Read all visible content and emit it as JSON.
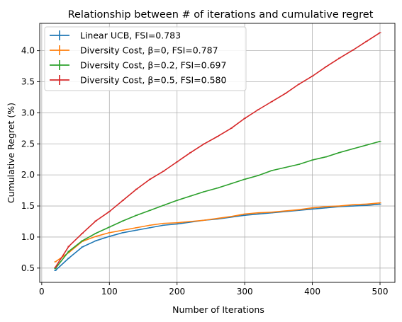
{
  "chart_data": {
    "type": "line",
    "title": "Relationship between # of iterations and cumulative regret",
    "xlabel": "Number of Iterations",
    "ylabel": "Cumulative Regret (%)",
    "xlim": [
      -3,
      522
    ],
    "ylim": [
      0.27,
      4.44
    ],
    "xticks": [
      0,
      100,
      200,
      300,
      400,
      500
    ],
    "yticks": [
      0.5,
      1.0,
      1.5,
      2.0,
      2.5,
      3.0,
      3.5,
      4.0
    ],
    "xtick_labels": [
      "0",
      "100",
      "200",
      "300",
      "400",
      "500"
    ],
    "ytick_labels": [
      "0.5",
      "1.0",
      "1.5",
      "2.0",
      "2.5",
      "3.0",
      "3.5",
      "4.0"
    ],
    "grid": true,
    "legend_position": "upper-left",
    "x": [
      20,
      40,
      60,
      80,
      100,
      120,
      140,
      160,
      180,
      200,
      220,
      240,
      260,
      280,
      300,
      320,
      340,
      360,
      380,
      400,
      420,
      440,
      460,
      480,
      500
    ],
    "series": [
      {
        "name": "Linear UCB, FSI=0.783",
        "color": "#1f77b4",
        "values": [
          0.46,
          0.66,
          0.84,
          0.94,
          1.01,
          1.07,
          1.11,
          1.15,
          1.19,
          1.21,
          1.24,
          1.27,
          1.29,
          1.32,
          1.35,
          1.37,
          1.39,
          1.41,
          1.43,
          1.45,
          1.47,
          1.49,
          1.5,
          1.51,
          1.53
        ]
      },
      {
        "name": "Diversity Cost, β=0, FSI=0.787",
        "color": "#ff7f0e",
        "values": [
          0.6,
          0.75,
          0.93,
          1.01,
          1.07,
          1.11,
          1.15,
          1.19,
          1.22,
          1.23,
          1.25,
          1.27,
          1.3,
          1.33,
          1.37,
          1.39,
          1.4,
          1.42,
          1.44,
          1.47,
          1.49,
          1.5,
          1.52,
          1.53,
          1.55
        ]
      },
      {
        "name": "Diversity Cost, β=0.2, FSI=0.697",
        "color": "#2ca02c",
        "values": [
          0.49,
          0.77,
          0.94,
          1.06,
          1.16,
          1.26,
          1.35,
          1.43,
          1.51,
          1.59,
          1.66,
          1.73,
          1.79,
          1.86,
          1.93,
          1.99,
          2.07,
          2.12,
          2.17,
          2.24,
          2.29,
          2.36,
          2.42,
          2.48,
          2.54
        ]
      },
      {
        "name": "Diversity Cost, β=0.5, FSI=0.580",
        "color": "#d62728",
        "values": [
          0.51,
          0.85,
          1.06,
          1.26,
          1.41,
          1.59,
          1.77,
          1.93,
          2.06,
          2.21,
          2.36,
          2.5,
          2.62,
          2.75,
          2.91,
          3.05,
          3.18,
          3.31,
          3.46,
          3.59,
          3.74,
          3.88,
          4.01,
          4.15,
          4.29
        ]
      }
    ]
  }
}
